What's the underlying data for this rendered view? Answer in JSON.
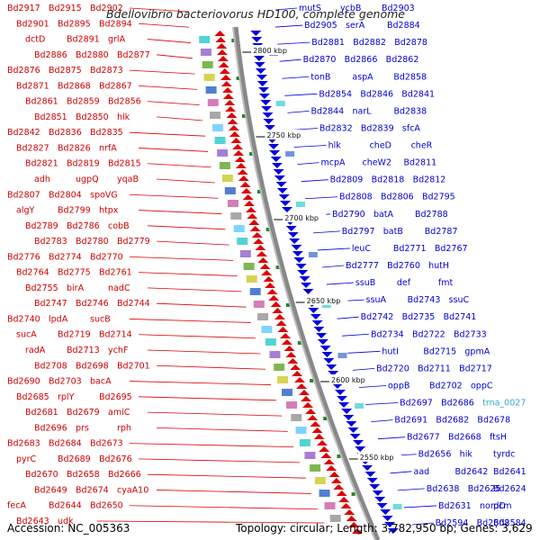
{
  "title": "Bdellovibrio bacteriovorus HD100, complete genome",
  "footer": {
    "accession": "Accession: NC_005363",
    "info": "Topology: circular; Length: 3,782,950 bp; Genes: 3,629"
  },
  "colors": {
    "forward": "#dd0000",
    "reverse": "#0000dd",
    "rna": "#33aacc",
    "backbone": "#888888",
    "tick": "#228822"
  },
  "scale_marks": [
    "2800 kbp",
    "2750 kbp",
    "2700 kbp",
    "2650 kbp",
    "2600 kbp",
    "2550 kbp"
  ],
  "left_labels": [
    "Bd2917",
    "Bd2915",
    "Bd2902",
    "Bd2901",
    "Bd2895",
    "Bd2894",
    "dctD",
    "Bd2891",
    "grlA",
    "Bd2886",
    "Bd2880",
    "Bd2877",
    "Bd2876",
    "Bd2875",
    "Bd2873",
    "Bd2871",
    "Bd2868",
    "Bd2867",
    "Bd2861",
    "Bd2859",
    "Bd2856",
    "Bd2851",
    "Bd2850",
    "hlk",
    "Bd2842",
    "Bd2836",
    "Bd2835",
    "Bd2827",
    "Bd2826",
    "nrfA",
    "Bd2821",
    "Bd2819",
    "Bd2815",
    "adh",
    "ugpQ",
    "yqaB",
    "Bd2807",
    "Bd2804",
    "spoVG",
    "algY",
    "Bd2799",
    "htpx",
    "Bd2789",
    "Bd2786",
    "cobB",
    "Bd2783",
    "Bd2780",
    "Bd2779",
    "Bd2776",
    "Bd2774",
    "Bd2770",
    "Bd2764",
    "Bd2775",
    "Bd2761",
    "Bd2755",
    "birA",
    "nadC",
    "Bd2747",
    "Bd2746",
    "Bd2744",
    "Bd2740",
    "lpdA",
    "sucB",
    "sucA",
    "Bd2719",
    "Bd2714",
    "radA",
    "Bd2713",
    "ychF",
    "Bd2708",
    "Bd2698",
    "Bd2701",
    "Bd2690",
    "Bd2703",
    "bacA",
    "Bd2685",
    "rplY",
    "Bd2695",
    "Bd2681",
    "Bd2679",
    "amiC",
    "Bd2696",
    "prs",
    "rph",
    "Bd2683",
    "Bd2684",
    "Bd2673",
    "pyrC",
    "Bd2689",
    "Bd2676",
    "Bd2670",
    "Bd2658",
    "Bd2666",
    "Bd2649",
    "Bd2674",
    "cyaA10",
    "fecA",
    "Bd2644",
    "Bd2650",
    "Bd2643",
    "udk"
  ],
  "right_labels": [
    "mutS",
    "ycbB",
    "Bd2903",
    "Bd2905",
    "serA",
    "Bd2884",
    "Bd2881",
    "Bd2882",
    "Bd2878",
    "Bd2870",
    "Bd2866",
    "Bd2862",
    "tonB",
    "aspA",
    "Bd2858",
    "Bd2854",
    "Bd2846",
    "Bd2841",
    "Bd2844",
    "narL",
    "Bd2838",
    "Bd2832",
    "Bd2839",
    "sfcA",
    "hlk",
    "cheD",
    "cheR",
    "mcpA",
    "cheW2",
    "Bd2811",
    "Bd2809",
    "Bd2818",
    "Bd2812",
    "Bd2808",
    "Bd2806",
    "Bd2795",
    "Bd2790",
    "batA",
    "Bd2788",
    "Bd2797",
    "batB",
    "Bd2787",
    "leuC",
    "Bd2771",
    "Bd2767",
    "Bd2777",
    "Bd2760",
    "hutH",
    "ssuB",
    "def",
    "fmt",
    "ssuA",
    "Bd2743",
    "ssuC",
    "Bd2742",
    "Bd2735",
    "Bd2741",
    "Bd2734",
    "Bd2722",
    "Bd2733",
    "hutI",
    "Bd2715",
    "gpmA",
    "Bd2720",
    "Bd2711",
    "Bd2717",
    "oppB",
    "Bd2702",
    "oppC",
    "Bd2697",
    "Bd2686",
    "trna_0027",
    "Bd2691",
    "Bd2682",
    "Bd2678",
    "Bd2677",
    "Bd2668",
    "ftsH",
    "Bd2656",
    "hik",
    "tyrdc",
    "aad",
    "Bd2642",
    "Bd2641",
    "Bd2638",
    "Bd2625",
    "Bd2624",
    "Bd2631",
    "nordD",
    "pcm",
    "Bd2594",
    "Bd2608",
    "Bd2584"
  ]
}
